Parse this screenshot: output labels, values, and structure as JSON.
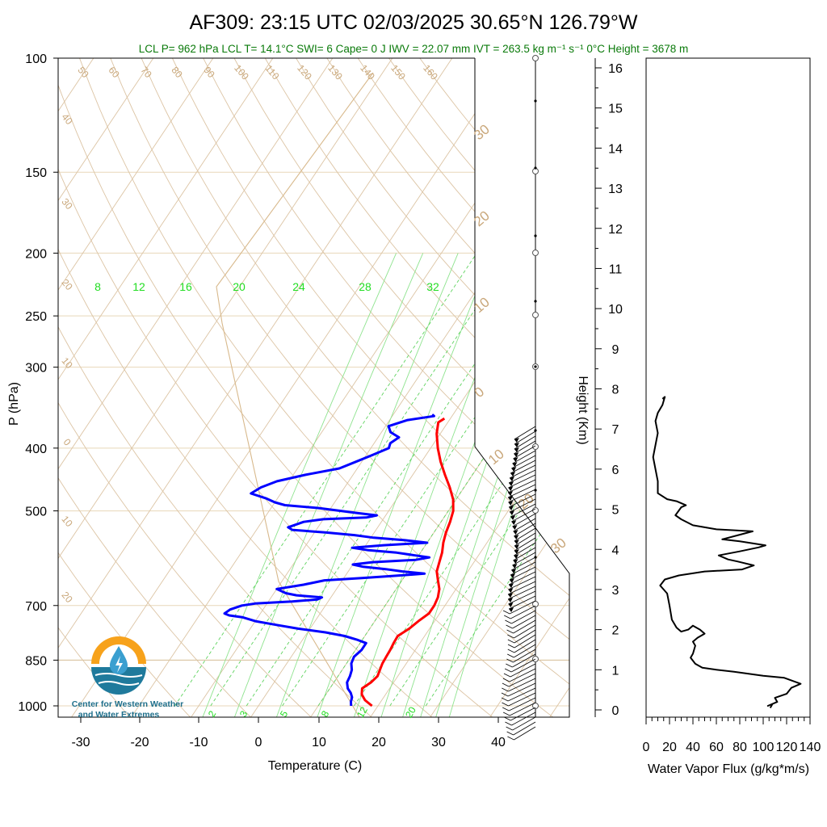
{
  "chart_data": [
    {
      "type": "skew-t",
      "title": "AF309: 23:15 UTC 02/03/2025  30.65°N 126.79°W",
      "subtitle": "LCL P= 962 hPa  LCL T= 14.1°C  SWI= 6  Cape= 0 J  IWV = 22.07 mm  IVT = 263.5 kg m⁻¹ s⁻¹  0°C Height = 3678 m",
      "xlabel": "Temperature (C)",
      "ylabel": "P (hPa)",
      "xticks": [
        "-30",
        "-20",
        "-10",
        "0",
        "10",
        "20",
        "30",
        "40"
      ],
      "yticks": [
        "100",
        "150",
        "200",
        "250",
        "300",
        "400",
        "500",
        "700",
        "850",
        "1000"
      ],
      "xlim": [
        -33,
        50
      ],
      "ylim": [
        1050,
        100
      ],
      "temperature_series": {
        "color": "#ff0000",
        "points": [
          [
            1000,
            19.0
          ],
          [
            980,
            17.2
          ],
          [
            960,
            16.0
          ],
          [
            940,
            15.4
          ],
          [
            920,
            16.2
          ],
          [
            900,
            16.6
          ],
          [
            880,
            16.3
          ],
          [
            860,
            16.0
          ],
          [
            840,
            15.9
          ],
          [
            820,
            15.8
          ],
          [
            800,
            15.6
          ],
          [
            780,
            15.5
          ],
          [
            760,
            16.6
          ],
          [
            740,
            17.3
          ],
          [
            720,
            18.2
          ],
          [
            700,
            18.2
          ],
          [
            680,
            17.9
          ],
          [
            660,
            17.2
          ],
          [
            640,
            16.0
          ],
          [
            620,
            14.8
          ],
          [
            600,
            14.2
          ],
          [
            580,
            13.6
          ],
          [
            560,
            12.7
          ],
          [
            540,
            12.0
          ],
          [
            520,
            11.5
          ],
          [
            500,
            10.8
          ],
          [
            480,
            9.5
          ],
          [
            460,
            7.6
          ],
          [
            440,
            5.4
          ],
          [
            420,
            3.2
          ],
          [
            400,
            1.2
          ],
          [
            380,
            -0.6
          ],
          [
            365,
            -1.6
          ],
          [
            360,
            -1.0
          ]
        ]
      },
      "dewpoint_series": {
        "color": "#0000ff",
        "points": [
          [
            1000,
            15.5
          ],
          [
            985,
            15.0
          ],
          [
            970,
            14.7
          ],
          [
            955,
            14.0
          ],
          [
            940,
            13.0
          ],
          [
            920,
            12.2
          ],
          [
            900,
            12.0
          ],
          [
            880,
            11.6
          ],
          [
            860,
            10.8
          ],
          [
            840,
            10.5
          ],
          [
            820,
            11.0
          ],
          [
            800,
            11.0
          ],
          [
            790,
            9.0
          ],
          [
            780,
            6.6
          ],
          [
            770,
            3.0
          ],
          [
            760,
            -2.0
          ],
          [
            750,
            -6.0
          ],
          [
            740,
            -10.0
          ],
          [
            730,
            -12.5
          ],
          [
            725,
            -15.0
          ],
          [
            720,
            -16.0
          ],
          [
            710,
            -15.5
          ],
          [
            700,
            -14.0
          ],
          [
            695,
            -12.0
          ],
          [
            690,
            -6.0
          ],
          [
            685,
            -2.0
          ],
          [
            680,
            -1.5
          ],
          [
            675,
            -6.0
          ],
          [
            670,
            -8.0
          ],
          [
            660,
            -10.0
          ],
          [
            650,
            -6.0
          ],
          [
            640,
            -3.0
          ],
          [
            635,
            3.0
          ],
          [
            630,
            8.0
          ],
          [
            625,
            13.0
          ],
          [
            620,
            9.0
          ],
          [
            615,
            6.0
          ],
          [
            610,
            2.0
          ],
          [
            605,
            0.0
          ],
          [
            600,
            3.0
          ],
          [
            595,
            10.0
          ],
          [
            590,
            12.0
          ],
          [
            585,
            9.0
          ],
          [
            580,
            6.0
          ],
          [
            575,
            1.0
          ],
          [
            570,
            -2.0
          ],
          [
            565,
            3.0
          ],
          [
            560,
            10.0
          ],
          [
            555,
            6.0
          ],
          [
            550,
            0.5
          ],
          [
            545,
            -3.0
          ],
          [
            540,
            -8.0
          ],
          [
            535,
            -14.0
          ],
          [
            530,
            -15.0
          ],
          [
            520,
            -13.0
          ],
          [
            515,
            -10.0
          ],
          [
            512,
            -3.0
          ],
          [
            508,
            -1.5
          ],
          [
            504,
            -5.0
          ],
          [
            500,
            -8.0
          ],
          [
            495,
            -12.0
          ],
          [
            490,
            -18.0
          ],
          [
            485,
            -20.0
          ],
          [
            478,
            -22.0
          ],
          [
            470,
            -25.0
          ],
          [
            460,
            -24.0
          ],
          [
            450,
            -22.0
          ],
          [
            440,
            -18.0
          ],
          [
            430,
            -13.0
          ],
          [
            420,
            -11.0
          ],
          [
            410,
            -9.0
          ],
          [
            400,
            -7.0
          ],
          [
            393,
            -7.3
          ],
          [
            385,
            -6.5
          ],
          [
            378,
            -8.5
          ],
          [
            370,
            -9.5
          ],
          [
            362,
            -7.0
          ],
          [
            357,
            -3.0
          ],
          [
            355,
            -3.5
          ]
        ]
      },
      "moist_adiabat_labels": [
        "2",
        "3",
        "5",
        "8",
        "12",
        "20"
      ],
      "mixing_ratio_labels": [
        "8",
        "12",
        "16",
        "20",
        "24",
        "28",
        "32"
      ],
      "dry_adiabat_labels": [
        "50",
        "60",
        "70",
        "80",
        "90",
        "100",
        "110",
        "120",
        "130",
        "140",
        "150",
        "160"
      ],
      "isotherm_labels": [
        "40",
        "30",
        "20",
        "10",
        "0",
        "10",
        "20"
      ],
      "right_isotherm_labels": [
        "30",
        "20",
        "10",
        "0",
        "10",
        "20",
        "30"
      ]
    },
    {
      "type": "line",
      "xlabel": "Water Vapor Flux (g/kg*m/s)",
      "ylabel": "Height (Km)",
      "xticks": [
        "0",
        "20",
        "40",
        "60",
        "80",
        "100",
        "120",
        "140"
      ],
      "yticks": [
        "0",
        "1",
        "2",
        "3",
        "4",
        "5",
        "6",
        "7",
        "8",
        "9",
        "10",
        "11",
        "12",
        "13",
        "14",
        "15",
        "16"
      ],
      "xlim": [
        0,
        140
      ],
      "ylim": [
        -0.25,
        16.3
      ],
      "series": [
        {
          "color": "#000000",
          "points": [
            [
              106,
              0.05
            ],
            [
              108,
              0.15
            ],
            [
              104,
              0.1
            ],
            [
              112,
              0.2
            ],
            [
              110,
              0.3
            ],
            [
              120,
              0.4
            ],
            [
              124,
              0.55
            ],
            [
              132,
              0.65
            ],
            [
              118,
              0.8
            ],
            [
              100,
              0.85
            ],
            [
              75,
              0.95
            ],
            [
              60,
              1.0
            ],
            [
              48,
              1.05
            ],
            [
              42,
              1.15
            ],
            [
              38,
              1.3
            ],
            [
              40,
              1.4
            ],
            [
              42,
              1.6
            ],
            [
              40,
              1.7
            ],
            [
              44,
              1.8
            ],
            [
              50,
              1.9
            ],
            [
              46,
              2.0
            ],
            [
              40,
              2.1
            ],
            [
              36,
              2.0
            ],
            [
              30,
              1.95
            ],
            [
              26,
              2.05
            ],
            [
              22,
              2.25
            ],
            [
              20,
              2.6
            ],
            [
              18,
              2.9
            ],
            [
              12,
              3.1
            ],
            [
              16,
              3.25
            ],
            [
              28,
              3.35
            ],
            [
              50,
              3.45
            ],
            [
              82,
              3.5
            ],
            [
              92,
              3.6
            ],
            [
              78,
              3.7
            ],
            [
              70,
              3.75
            ],
            [
              62,
              3.85
            ],
            [
              80,
              3.95
            ],
            [
              96,
              4.05
            ],
            [
              102,
              4.1
            ],
            [
              80,
              4.2
            ],
            [
              65,
              4.25
            ],
            [
              78,
              4.35
            ],
            [
              91,
              4.45
            ],
            [
              60,
              4.5
            ],
            [
              40,
              4.6
            ],
            [
              30,
              4.75
            ],
            [
              25,
              4.85
            ],
            [
              30,
              5.05
            ],
            [
              34,
              5.1
            ],
            [
              26,
              5.2
            ],
            [
              18,
              5.25
            ],
            [
              10,
              5.4
            ],
            [
              10,
              5.7
            ],
            [
              8,
              6.0
            ],
            [
              6,
              6.3
            ],
            [
              8,
              6.6
            ],
            [
              10,
              6.9
            ],
            [
              8,
              7.2
            ],
            [
              10,
              7.4
            ],
            [
              14,
              7.6
            ],
            [
              16,
              7.8
            ],
            [
              14,
              7.75
            ]
          ]
        }
      ]
    }
  ],
  "logo": {
    "line1": "Center for Western Weather",
    "line2": "and Water Extremes",
    "colors": {
      "sun": "#f7a21b",
      "water": "#1f7a9c",
      "drop": "#3a9fd0"
    }
  }
}
